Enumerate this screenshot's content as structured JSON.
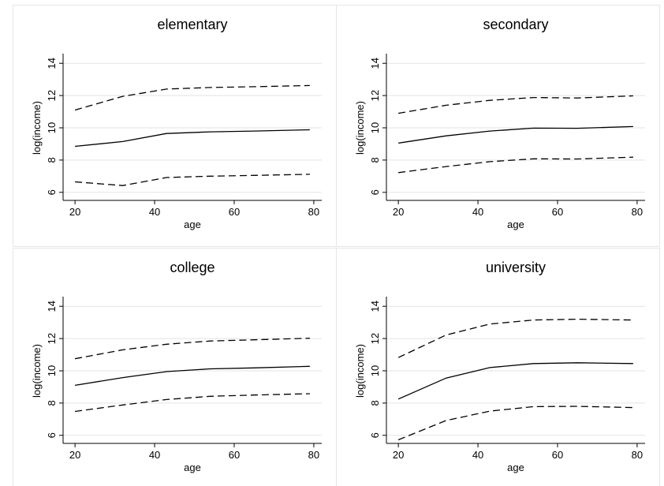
{
  "chart_data": [
    {
      "type": "line",
      "title": "elementary",
      "xlabel": "age",
      "ylabel": "log(income)",
      "xlim": [
        17,
        82
      ],
      "ylim": [
        5.5,
        14.5
      ],
      "xticks": [
        "20",
        "40",
        "60",
        "80"
      ],
      "yticks": [
        "6",
        "8",
        "10",
        "12",
        "14"
      ],
      "grid": true,
      "x": [
        20,
        32,
        43,
        54,
        65,
        79
      ],
      "series": [
        {
          "style": "dashed",
          "values": [
            11.1,
            11.95,
            12.4,
            12.5,
            12.55,
            12.62
          ]
        },
        {
          "style": "solid",
          "values": [
            8.85,
            9.15,
            9.65,
            9.75,
            9.8,
            9.88
          ]
        },
        {
          "style": "dashed",
          "values": [
            6.65,
            6.42,
            6.92,
            7.0,
            7.05,
            7.12
          ]
        }
      ]
    },
    {
      "type": "line",
      "title": "secondary",
      "xlabel": "age",
      "ylabel": "log(income)",
      "xlim": [
        17,
        82
      ],
      "ylim": [
        5.5,
        14.5
      ],
      "xticks": [
        "20",
        "40",
        "60",
        "80"
      ],
      "yticks": [
        "6",
        "8",
        "10",
        "12",
        "14"
      ],
      "grid": true,
      "x": [
        20,
        32,
        43,
        54,
        65,
        79
      ],
      "series": [
        {
          "style": "dashed",
          "values": [
            10.9,
            11.4,
            11.7,
            11.88,
            11.85,
            11.98
          ]
        },
        {
          "style": "solid",
          "values": [
            9.05,
            9.5,
            9.8,
            9.98,
            9.97,
            10.08
          ]
        },
        {
          "style": "dashed",
          "values": [
            7.22,
            7.6,
            7.9,
            8.08,
            8.07,
            8.18
          ]
        }
      ]
    },
    {
      "type": "line",
      "title": "college",
      "xlabel": "age",
      "ylabel": "log(income)",
      "xlim": [
        17,
        82
      ],
      "ylim": [
        5.5,
        14.5
      ],
      "xticks": [
        "20",
        "40",
        "60",
        "80"
      ],
      "yticks": [
        "6",
        "8",
        "10",
        "12",
        "14"
      ],
      "grid": true,
      "x": [
        20,
        32,
        43,
        54,
        65,
        79
      ],
      "series": [
        {
          "style": "dashed",
          "values": [
            10.75,
            11.3,
            11.65,
            11.85,
            11.92,
            12.02
          ]
        },
        {
          "style": "solid",
          "values": [
            9.1,
            9.58,
            9.95,
            10.12,
            10.18,
            10.28
          ]
        },
        {
          "style": "dashed",
          "values": [
            7.48,
            7.88,
            8.22,
            8.42,
            8.5,
            8.58
          ]
        }
      ]
    },
    {
      "type": "line",
      "title": "university",
      "xlabel": "age",
      "ylabel": "log(income)",
      "xlim": [
        17,
        82
      ],
      "ylim": [
        5.5,
        14.5
      ],
      "xticks": [
        "20",
        "40",
        "60",
        "80"
      ],
      "yticks": [
        "6",
        "8",
        "10",
        "12",
        "14"
      ],
      "grid": true,
      "x": [
        20,
        32,
        43,
        54,
        65,
        79
      ],
      "series": [
        {
          "style": "dashed",
          "values": [
            10.82,
            12.22,
            12.9,
            13.15,
            13.2,
            13.15
          ]
        },
        {
          "style": "solid",
          "values": [
            8.25,
            9.55,
            10.2,
            10.45,
            10.5,
            10.45
          ]
        },
        {
          "style": "dashed",
          "values": [
            5.72,
            6.92,
            7.5,
            7.78,
            7.8,
            7.72
          ]
        }
      ]
    }
  ]
}
